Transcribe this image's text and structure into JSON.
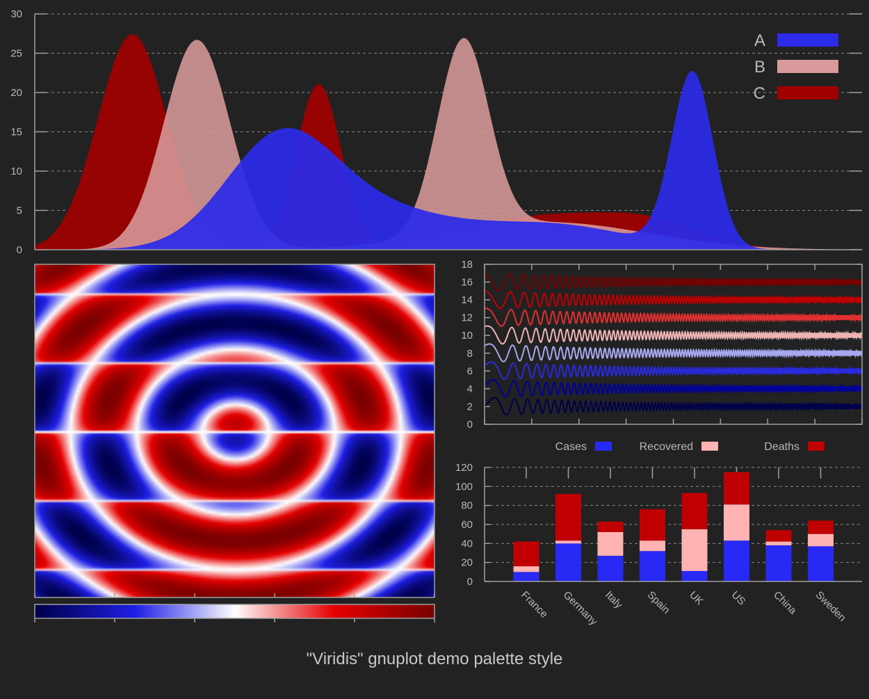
{
  "title": "\"Viridis\" gnuplot demo palette style",
  "colors": {
    "background": "#222222",
    "axis": "#a0a0a0",
    "text": "#b8b8b8",
    "series_A": "#2b2be8",
    "series_B": "#d89a9a",
    "series_C": "#a00000",
    "cases": "#2929f5",
    "recovered": "#ffb3b3",
    "deaths": "#c00000"
  },
  "chart_data": [
    {
      "type": "area",
      "title": "",
      "xlabel": "",
      "ylabel": "",
      "xlim": [
        0,
        100
      ],
      "ylim": [
        0,
        30
      ],
      "yticks": [
        "0",
        "5",
        "10",
        "15",
        "20",
        "25",
        "30"
      ],
      "grid": true,
      "legend": "top-right",
      "series": [
        {
          "name": "C",
          "color": "#a00000",
          "opacity": 0.93,
          "components": [
            {
              "amp": 27.4,
              "center": 11.8,
              "width": 4.2
            },
            {
              "amp": 21.0,
              "center": 34.3,
              "width": 2.7
            },
            {
              "amp": 4.3,
              "center": 62.0,
              "width": 10.0
            },
            {
              "amp": 2.3,
              "center": 75.0,
              "width": 6.0
            }
          ]
        },
        {
          "name": "B",
          "color": "#d89a9a",
          "opacity": 0.88,
          "components": [
            {
              "amp": 26.7,
              "center": 19.6,
              "width": 4.0
            },
            {
              "amp": 24.5,
              "center": 51.8,
              "width": 3.1
            },
            {
              "amp": 3.5,
              "center": 62.0,
              "width": 12.0
            }
          ]
        },
        {
          "name": "A",
          "color": "#2b2be8",
          "opacity": 0.93,
          "components": [
            {
              "amp": 22.2,
              "center": 79.5,
              "width": 2.5
            },
            {
              "amp": 12.3,
              "center": 29.5,
              "width": 6.5
            },
            {
              "amp": 5.2,
              "center": 40.0,
              "width": 10.0
            },
            {
              "amp": 3.0,
              "center": 63.0,
              "width": 9.0
            }
          ]
        }
      ]
    },
    {
      "type": "heatmap",
      "title": "",
      "function": "cos(r) modulated, red-white-blue palette",
      "colorbox": "horizontal-bottom",
      "palette": [
        "#00004a",
        "#1f1fe6",
        "#ffffff",
        "#e60000",
        "#7a0000"
      ]
    },
    {
      "type": "line",
      "title": "",
      "xlim": [
        0,
        1
      ],
      "ylim": [
        0,
        18
      ],
      "yticks": [
        "0",
        "2",
        "4",
        "6",
        "8",
        "10",
        "12",
        "14",
        "16",
        "18"
      ],
      "series": [
        {
          "offset": 2,
          "color": "#00004a"
        },
        {
          "offset": 4,
          "color": "#00009c"
        },
        {
          "offset": 6,
          "color": "#2a2ae0"
        },
        {
          "offset": 8,
          "color": "#a8a8f0"
        },
        {
          "offset": 10,
          "color": "#f0b4b4"
        },
        {
          "offset": 12,
          "color": "#e03030"
        },
        {
          "offset": 14,
          "color": "#c00000"
        },
        {
          "offset": 16,
          "color": "#7a0000"
        }
      ]
    },
    {
      "type": "bar",
      "stacked": true,
      "title": "",
      "ylim": [
        0,
        120
      ],
      "yticks": [
        "0",
        "20",
        "40",
        "60",
        "80",
        "100",
        "120"
      ],
      "legend": "top",
      "categories": [
        "France",
        "Germany",
        "Italy",
        "Spain",
        "UK",
        "US",
        "China",
        "Sweden"
      ],
      "series": [
        {
          "name": "Cases",
          "values": [
            10,
            40,
            27,
            32,
            11,
            43,
            38,
            37
          ]
        },
        {
          "name": "Recovered",
          "values": [
            6,
            3,
            25,
            11,
            44,
            38,
            4,
            13
          ]
        },
        {
          "name": "Deaths",
          "values": [
            26,
            49,
            11,
            33,
            38,
            34,
            12,
            14
          ]
        }
      ]
    }
  ]
}
